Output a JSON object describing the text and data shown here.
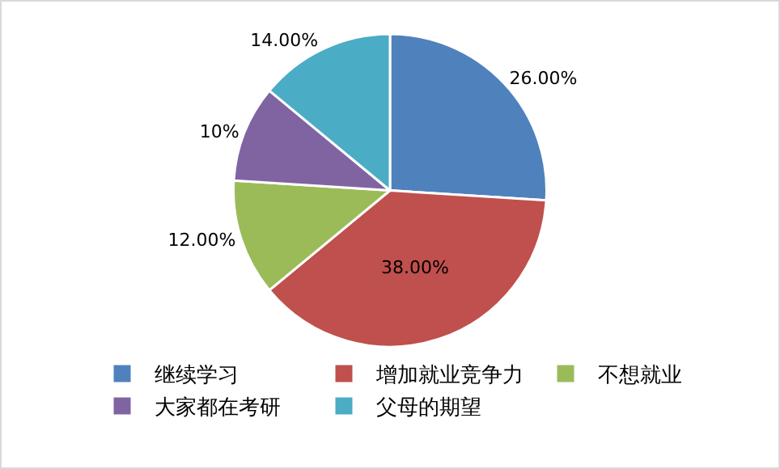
{
  "chart_data": {
    "type": "pie",
    "categories": [
      "继续学习",
      "增加就业竞争力",
      "不想就业",
      "大家都在考研",
      "父母的期望"
    ],
    "values": [
      26,
      38,
      12,
      10,
      14
    ],
    "value_labels": [
      "26.00%",
      "38.00%",
      "12.00%",
      "10%",
      "14.00%"
    ],
    "colors": [
      "#4f81bd",
      "#c0504d",
      "#9bbb59",
      "#8064a2",
      "#4bacc6"
    ],
    "legend": "bottom"
  }
}
